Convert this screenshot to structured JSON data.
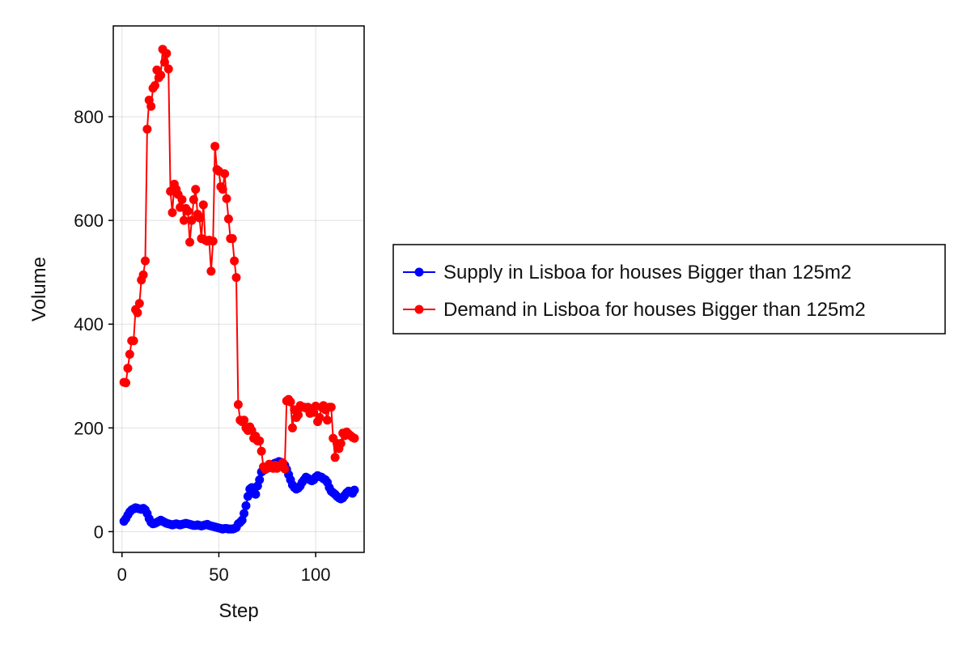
{
  "chart_data": {
    "type": "line",
    "title": "",
    "xlabel": "Step",
    "ylabel": "Volume",
    "xlim": [
      -4.5,
      125
    ],
    "ylim": [
      -40,
      975
    ],
    "x_ticks": [
      0,
      50,
      100
    ],
    "y_ticks": [
      0,
      200,
      400,
      600,
      800
    ],
    "grid": true,
    "legend_position": "right",
    "x": [
      1,
      2,
      3,
      4,
      5,
      6,
      7,
      8,
      9,
      10,
      11,
      12,
      13,
      14,
      15,
      16,
      17,
      18,
      19,
      20,
      21,
      22,
      23,
      24,
      25,
      26,
      27,
      28,
      29,
      30,
      31,
      32,
      33,
      34,
      35,
      36,
      37,
      38,
      39,
      40,
      41,
      42,
      43,
      44,
      45,
      46,
      47,
      48,
      49,
      50,
      51,
      52,
      53,
      54,
      55,
      56,
      57,
      58,
      59,
      60,
      61,
      62,
      63,
      64,
      65,
      66,
      67,
      68,
      69,
      70,
      71,
      72,
      73,
      74,
      75,
      76,
      77,
      78,
      79,
      80,
      81,
      82,
      83,
      84,
      85,
      86,
      87,
      88,
      89,
      90,
      91,
      92,
      93,
      94,
      95,
      96,
      97,
      98,
      99,
      100,
      101,
      102,
      103,
      104,
      105,
      106,
      107,
      108,
      109,
      110,
      111,
      112,
      113,
      114,
      115,
      116,
      117,
      118,
      119,
      120
    ],
    "series": [
      {
        "name": "Supply in Lisboa for houses Bigger than 125m2",
        "color": "#0000ff",
        "values": [
          20,
          25,
          32,
          38,
          42,
          44,
          46,
          45,
          44,
          43,
          45,
          42,
          35,
          25,
          18,
          15,
          16,
          18,
          20,
          22,
          20,
          18,
          16,
          15,
          14,
          13,
          14,
          15,
          14,
          13,
          14,
          15,
          16,
          15,
          14,
          13,
          12,
          12,
          13,
          12,
          11,
          12,
          13,
          14,
          12,
          11,
          10,
          9,
          8,
          7,
          6,
          5,
          6,
          6,
          5,
          5,
          5,
          6,
          8,
          15,
          18,
          22,
          35,
          50,
          68,
          82,
          85,
          80,
          72,
          88,
          100,
          115,
          118,
          120,
          122,
          125,
          128,
          130,
          132,
          133,
          135,
          134,
          132,
          128,
          120,
          110,
          100,
          90,
          85,
          82,
          84,
          88,
          95,
          100,
          105,
          103,
          100,
          98,
          100,
          105,
          108,
          106,
          105,
          102,
          100,
          95,
          85,
          78,
          75,
          72,
          68,
          65,
          63,
          65,
          70,
          75,
          78,
          76,
          74,
          80
        ]
      },
      {
        "name": "Demand in Lisboa for houses Bigger than 125m2",
        "color": "#ff0000",
        "values": [
          288,
          287,
          315,
          342,
          368,
          368,
          428,
          422,
          440,
          485,
          495,
          522,
          776,
          832,
          820,
          855,
          860,
          890,
          875,
          880,
          930,
          905,
          922,
          892,
          656,
          615,
          670,
          660,
          650,
          625,
          640,
          600,
          623,
          618,
          558,
          600,
          640,
          660,
          612,
          605,
          565,
          630,
          562,
          560,
          562,
          502,
          560,
          743,
          698,
          695,
          665,
          660,
          690,
          642,
          603,
          565,
          565,
          522,
          490,
          245,
          215,
          212,
          215,
          200,
          195,
          202,
          195,
          180,
          184,
          175,
          175,
          155,
          125,
          120,
          123,
          130,
          125,
          122,
          128,
          122,
          125,
          128,
          133,
          121,
          252,
          255,
          250,
          200,
          235,
          220,
          225,
          243,
          240,
          240,
          238,
          240,
          228,
          235,
          230,
          242,
          212,
          220,
          240,
          243,
          235,
          215,
          240,
          240,
          180,
          143,
          170,
          160,
          170,
          190,
          185,
          192,
          188,
          185,
          182,
          180
        ]
      }
    ]
  }
}
